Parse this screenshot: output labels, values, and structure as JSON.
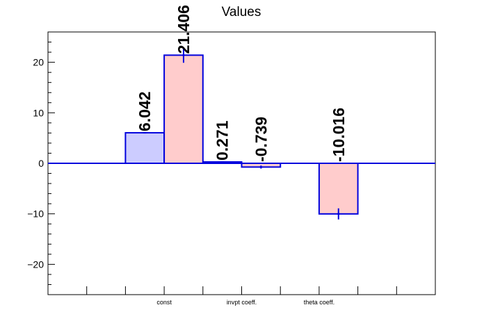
{
  "chart_data": {
    "type": "bar",
    "title": "Values",
    "xlabel": "",
    "ylabel": "",
    "categories": [
      "const",
      "invpt coeff.",
      "theta coeff."
    ],
    "ylim": [
      -26,
      26
    ],
    "yticks": [
      -20,
      -10,
      0,
      10,
      20
    ],
    "series": [
      {
        "values": [
          6.042,
          0.271,
          0
        ],
        "labels": [
          "6.042",
          "0.271",
          ""
        ],
        "errors": [
          0,
          0,
          0
        ],
        "fill": "#ccccff",
        "stroke": "#0000dd"
      },
      {
        "values": [
          21.406,
          -0.739,
          -10.016
        ],
        "labels": [
          "21.406",
          "-0.739",
          "-10.016"
        ],
        "errors": [
          1.5,
          0.3,
          1.1
        ],
        "fill": "#ffcccc",
        "stroke": "#0000dd"
      }
    ],
    "grid": false,
    "legend": "none"
  }
}
